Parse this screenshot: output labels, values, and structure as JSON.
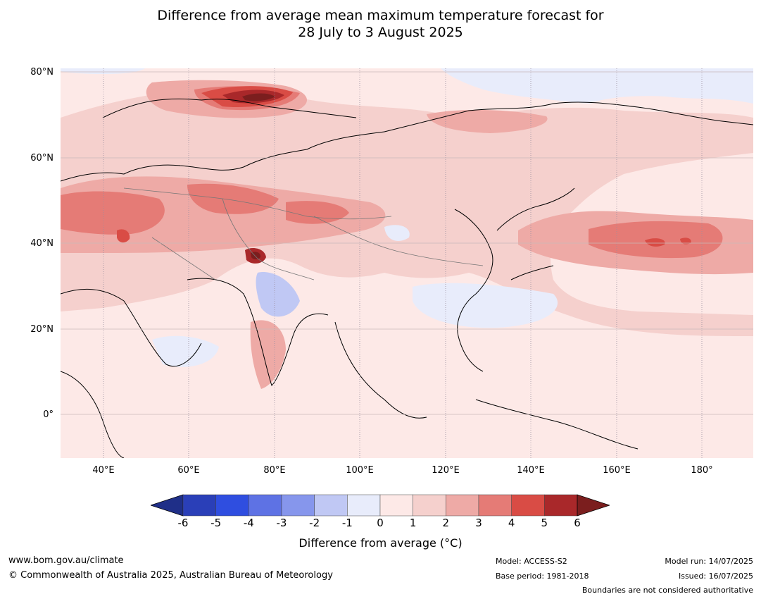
{
  "title": {
    "line1": "Difference from average mean maximum temperature forecast for",
    "line2": "28 July to 3 August 2025"
  },
  "map": {
    "lat_labels": [
      "80°N",
      "60°N",
      "40°N",
      "20°N",
      "0°"
    ],
    "lon_labels": [
      "40°E",
      "60°E",
      "80°E",
      "100°E",
      "120°E",
      "140°E",
      "160°E",
      "180°"
    ],
    "lon_range": [
      30,
      192
    ],
    "lat_range": [
      -10,
      81
    ]
  },
  "legend": {
    "ticks": [
      "-6",
      "-5",
      "-4",
      "-3",
      "-2",
      "-1",
      "0",
      "1",
      "2",
      "3",
      "4",
      "5",
      "6"
    ],
    "colors": [
      "#1f2f88",
      "#2a3fb8",
      "#2f4ee0",
      "#5e72e4",
      "#8696ec",
      "#c0c8f4",
      "#e8ecfb",
      "#fde9e7",
      "#f5d0cd",
      "#eeaaa6",
      "#e57b76",
      "#d94c45",
      "#a9282a",
      "#7b1e1e"
    ],
    "label": "Difference from average (°C)"
  },
  "footer": {
    "website": "www.bom.gov.au/climate",
    "copyright": "© Commonwealth of Australia 2025, Australian Bureau of Meteorology",
    "model": "Model: ACCESS-S2",
    "base_period": "Base period: 1981-2018",
    "model_run": "Model run: 14/07/2025",
    "issued": "Issued: 16/07/2025",
    "boundaries": "Boundaries are not considered authoritative"
  }
}
